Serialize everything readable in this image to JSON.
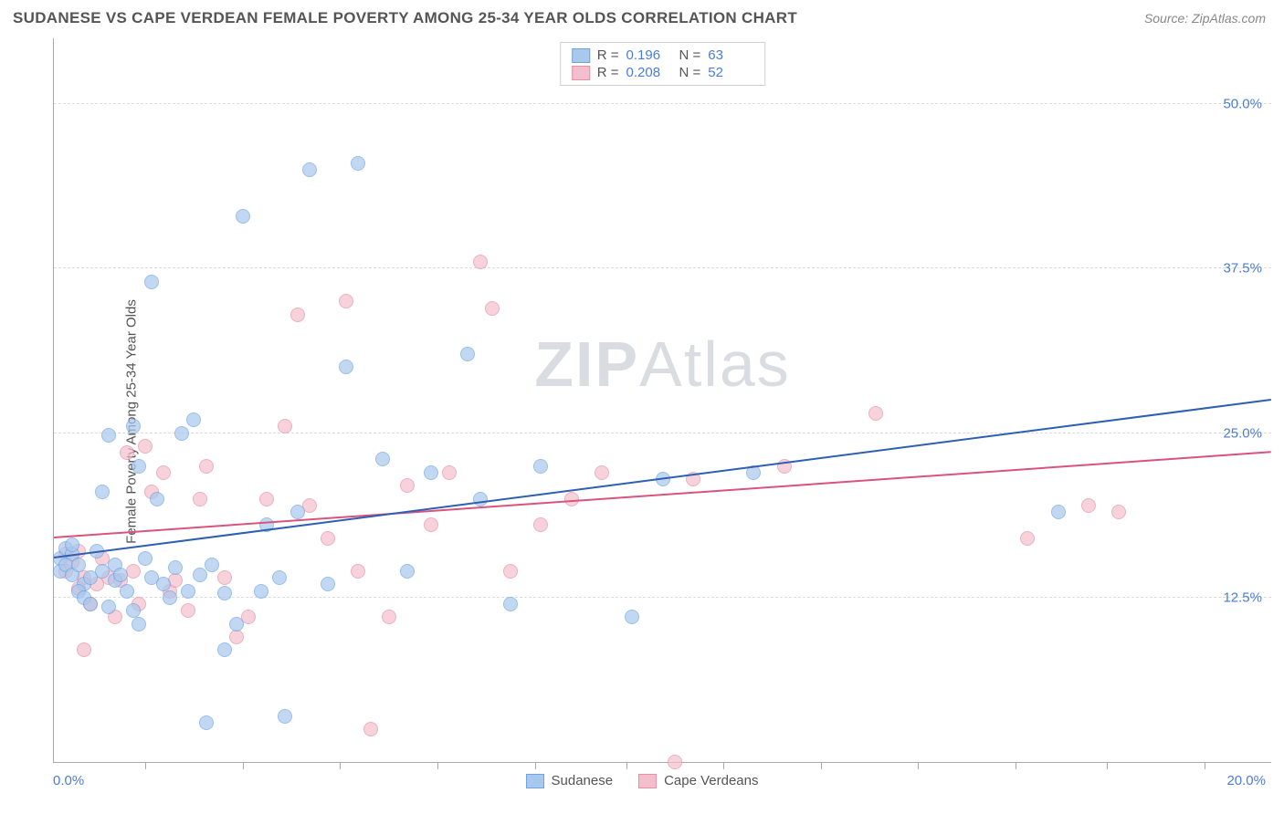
{
  "header": {
    "title": "SUDANESE VS CAPE VERDEAN FEMALE POVERTY AMONG 25-34 YEAR OLDS CORRELATION CHART",
    "source_label": "Source: ZipAtlas.com"
  },
  "chart": {
    "type": "scatter",
    "ylabel": "Female Poverty Among 25-34 Year Olds",
    "background_color": "#ffffff",
    "grid_color": "#dddddd",
    "axis_color": "#aaaaaa",
    "xlim": [
      0,
      20
    ],
    "ylim": [
      0,
      55
    ],
    "x_tick_positions": [
      1.5,
      3.1,
      4.7,
      6.3,
      7.9,
      9.4,
      11.0,
      12.6,
      14.2,
      15.8,
      17.3,
      18.9
    ],
    "x_min_label": "0.0%",
    "x_max_label": "20.0%",
    "y_gridlines": [
      12.5,
      25.0,
      37.5,
      50.0
    ],
    "y_tick_labels": [
      "12.5%",
      "25.0%",
      "37.5%",
      "50.0%"
    ],
    "axis_label_color": "#4a7dd6",
    "title_color": "#555555",
    "title_fontsize": 17,
    "label_fontsize": 15,
    "marker_radius": 8,
    "marker_fill_opacity": 0.35,
    "watermark_text_bold": "ZIP",
    "watermark_text_light": "Atlas",
    "watermark_color": "#d9dde2"
  },
  "series": {
    "sudanese": {
      "label": "Sudanese",
      "color_stroke": "#6fa3e0",
      "color_fill": "#a9c8ed",
      "trend_color": "#2d5fb3",
      "R": "0.196",
      "N": "63",
      "trend": {
        "x1": 0,
        "y1": 15.5,
        "x2": 20,
        "y2": 27.5
      },
      "points": [
        [
          0.1,
          15.5
        ],
        [
          0.2,
          16.2
        ],
        [
          0.1,
          14.5
        ],
        [
          0.3,
          15.8
        ],
        [
          0.2,
          15.0
        ],
        [
          0.3,
          14.2
        ],
        [
          0.3,
          16.5
        ],
        [
          0.5,
          13.5
        ],
        [
          0.4,
          15.0
        ],
        [
          0.6,
          14.0
        ],
        [
          0.4,
          13.0
        ],
        [
          0.5,
          12.5
        ],
        [
          0.7,
          16.0
        ],
        [
          0.8,
          14.5
        ],
        [
          0.6,
          12.0
        ],
        [
          0.9,
          24.8
        ],
        [
          0.8,
          20.5
        ],
        [
          1.0,
          13.8
        ],
        [
          0.9,
          11.8
        ],
        [
          1.0,
          15.0
        ],
        [
          1.1,
          14.2
        ],
        [
          1.2,
          13.0
        ],
        [
          1.3,
          25.5
        ],
        [
          1.3,
          11.5
        ],
        [
          1.4,
          22.5
        ],
        [
          1.5,
          15.5
        ],
        [
          1.6,
          14.0
        ],
        [
          1.4,
          10.5
        ],
        [
          1.7,
          20.0
        ],
        [
          1.6,
          36.5
        ],
        [
          1.8,
          13.5
        ],
        [
          1.9,
          12.5
        ],
        [
          2.0,
          14.8
        ],
        [
          2.1,
          25.0
        ],
        [
          2.2,
          13.0
        ],
        [
          2.3,
          26.0
        ],
        [
          2.4,
          14.2
        ],
        [
          2.5,
          3.0
        ],
        [
          2.6,
          15.0
        ],
        [
          2.8,
          12.8
        ],
        [
          2.8,
          8.5
        ],
        [
          3.0,
          10.5
        ],
        [
          3.1,
          41.5
        ],
        [
          3.4,
          13.0
        ],
        [
          3.5,
          18.0
        ],
        [
          3.7,
          14.0
        ],
        [
          3.8,
          3.5
        ],
        [
          4.0,
          19.0
        ],
        [
          4.2,
          45.0
        ],
        [
          4.5,
          13.5
        ],
        [
          4.8,
          30.0
        ],
        [
          5.0,
          45.5
        ],
        [
          5.4,
          23.0
        ],
        [
          5.8,
          14.5
        ],
        [
          6.2,
          22.0
        ],
        [
          6.8,
          31.0
        ],
        [
          7.0,
          20.0
        ],
        [
          7.5,
          12.0
        ],
        [
          8.0,
          22.5
        ],
        [
          9.5,
          11.0
        ],
        [
          10.0,
          21.5
        ],
        [
          11.5,
          22.0
        ],
        [
          16.5,
          19.0
        ]
      ]
    },
    "cape_verdeans": {
      "label": "Cape Verdeans",
      "color_stroke": "#e58fa8",
      "color_fill": "#f4bfcd",
      "trend_color": "#d9547c",
      "R": "0.208",
      "N": "52",
      "trend": {
        "x1": 0,
        "y1": 17.0,
        "x2": 20,
        "y2": 23.5
      },
      "points": [
        [
          0.2,
          15.8
        ],
        [
          0.3,
          15.2
        ],
        [
          0.2,
          14.5
        ],
        [
          0.4,
          16.0
        ],
        [
          0.5,
          14.0
        ],
        [
          0.4,
          13.2
        ],
        [
          0.6,
          12.0
        ],
        [
          0.5,
          8.5
        ],
        [
          0.7,
          13.5
        ],
        [
          0.8,
          15.5
        ],
        [
          0.9,
          14.0
        ],
        [
          1.0,
          11.0
        ],
        [
          1.1,
          13.8
        ],
        [
          1.2,
          23.5
        ],
        [
          1.3,
          14.5
        ],
        [
          1.4,
          12.0
        ],
        [
          1.5,
          24.0
        ],
        [
          1.6,
          20.5
        ],
        [
          1.8,
          22.0
        ],
        [
          1.9,
          13.0
        ],
        [
          2.0,
          13.8
        ],
        [
          2.2,
          11.5
        ],
        [
          2.4,
          20.0
        ],
        [
          2.5,
          22.5
        ],
        [
          2.8,
          14.0
        ],
        [
          3.0,
          9.5
        ],
        [
          3.2,
          11.0
        ],
        [
          3.5,
          20.0
        ],
        [
          3.8,
          25.5
        ],
        [
          4.0,
          34.0
        ],
        [
          4.2,
          19.5
        ],
        [
          4.5,
          17.0
        ],
        [
          4.8,
          35.0
        ],
        [
          5.0,
          14.5
        ],
        [
          5.2,
          2.5
        ],
        [
          5.5,
          11.0
        ],
        [
          5.8,
          21.0
        ],
        [
          6.2,
          18.0
        ],
        [
          6.5,
          22.0
        ],
        [
          7.0,
          38.0
        ],
        [
          7.2,
          34.5
        ],
        [
          7.5,
          14.5
        ],
        [
          8.0,
          18.0
        ],
        [
          8.5,
          20.0
        ],
        [
          9.0,
          22.0
        ],
        [
          10.2,
          0.0
        ],
        [
          10.5,
          21.5
        ],
        [
          12.0,
          22.5
        ],
        [
          13.5,
          26.5
        ],
        [
          16.0,
          17.0
        ],
        [
          17.0,
          19.5
        ],
        [
          17.5,
          19.0
        ]
      ]
    }
  },
  "top_legend": {
    "r_label": "R  =",
    "n_label": "N  ="
  }
}
